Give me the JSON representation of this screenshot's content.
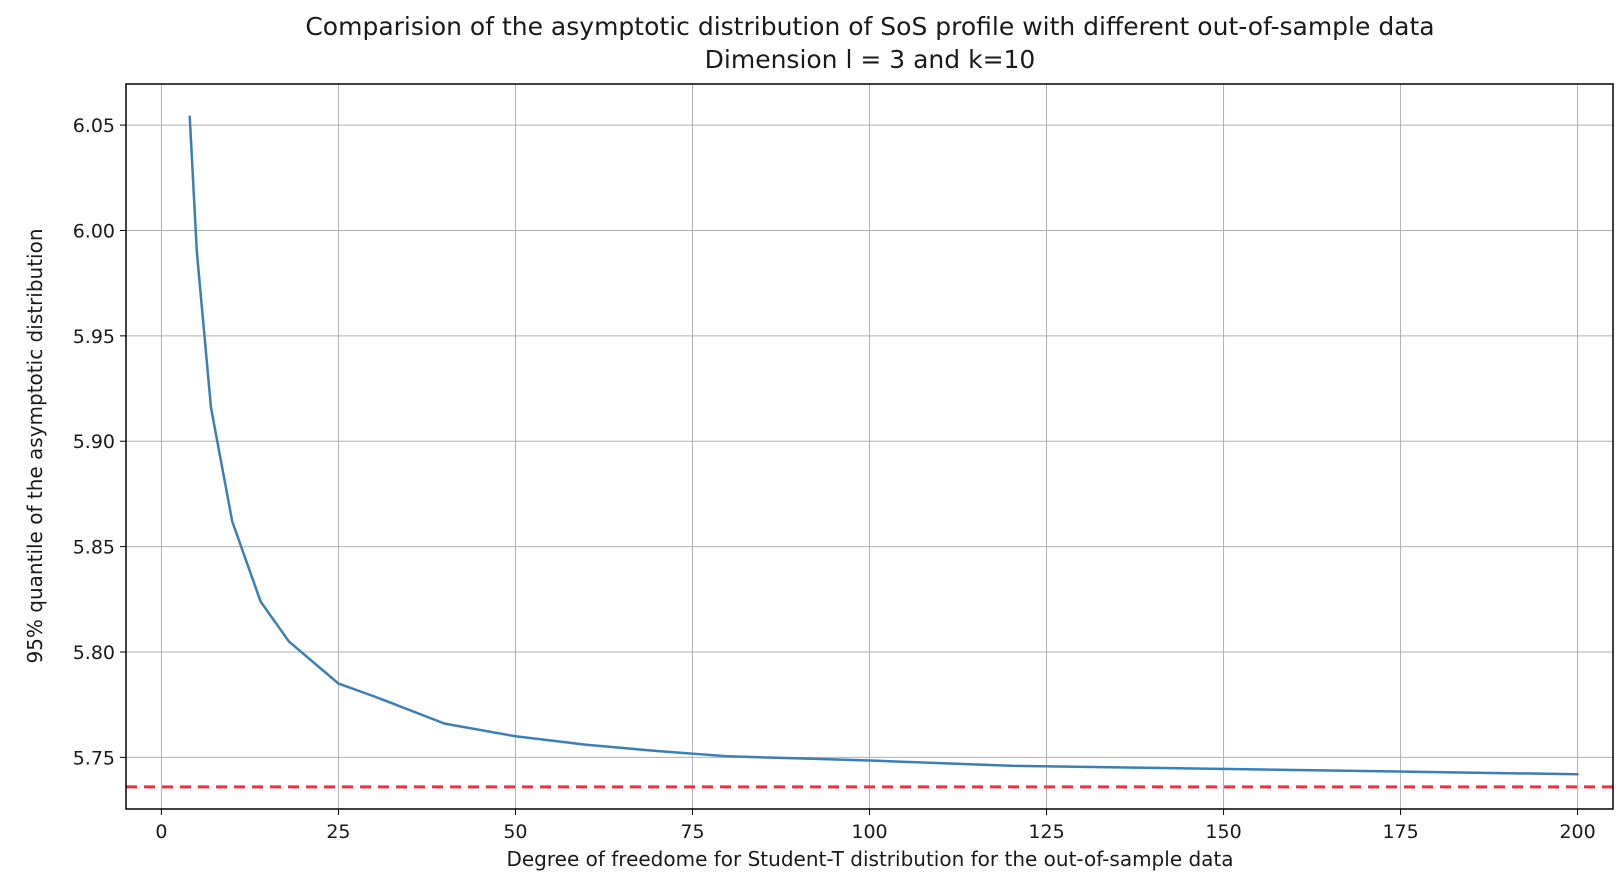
{
  "chart_data": {
    "type": "line",
    "title": "Comparision of the asymptotic distribution of SoS profile with different out-of-sample data",
    "subtitle": "Dimension l = 3 and k=10",
    "xlabel": "Degree of freedome for Student-T distribution for the out-of-sample data",
    "ylabel": "95% quantile of the asymptotic distribution",
    "xlim": [
      -5,
      205
    ],
    "ylim": [
      5.7255,
      6.0695
    ],
    "x_ticks": [
      0,
      25,
      50,
      75,
      100,
      125,
      150,
      175,
      200
    ],
    "x_tick_labels": [
      "0",
      "25",
      "50",
      "75",
      "100",
      "125",
      "150",
      "175",
      "200"
    ],
    "y_ticks": [
      5.75,
      5.8,
      5.85,
      5.9,
      5.95,
      6.0,
      6.05
    ],
    "y_tick_labels": [
      "5.75",
      "5.80",
      "5.85",
      "5.90",
      "5.95",
      "6.00",
      "6.05"
    ],
    "grid": true,
    "series": [
      {
        "color": "#3a7fb8",
        "style": "solid",
        "x": [
          4,
          5,
          7,
          10,
          14,
          18,
          25,
          30,
          40,
          50,
          60,
          70,
          80,
          90,
          100,
          120,
          140,
          160,
          180,
          200
        ],
        "y": [
          6.054,
          5.99,
          5.916,
          5.862,
          5.824,
          5.805,
          5.785,
          5.779,
          5.766,
          5.76,
          5.756,
          5.753,
          5.7505,
          5.7495,
          5.7485,
          5.746,
          5.745,
          5.744,
          5.743,
          5.742
        ]
      }
    ],
    "reference_lines": [
      {
        "orientation": "horizontal",
        "y": 5.736,
        "color": "#ff2a3c",
        "style": "dashed"
      }
    ]
  }
}
